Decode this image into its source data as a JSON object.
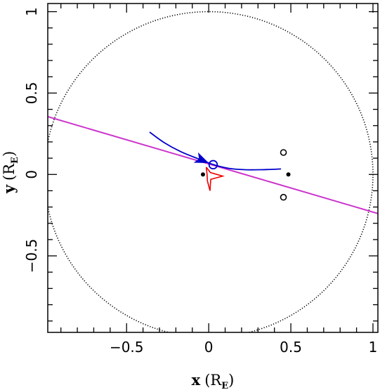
{
  "chart_data": {
    "type": "scatter",
    "title": "",
    "xlabel": "x",
    "xlabel_unit": "R",
    "xlabel_unit_sub": "E",
    "ylabel": "y",
    "ylabel_unit": "R",
    "ylabel_unit_sub": "E",
    "xlim": [
      -0.98,
      1.03
    ],
    "ylim": [
      -0.97,
      1.05
    ],
    "x_ticks": [
      {
        "value": -0.5,
        "label": "−0.5"
      },
      {
        "value": 0,
        "label": "0"
      },
      {
        "value": 0.5,
        "label": "0.5"
      },
      {
        "value": 1,
        "label": "1"
      }
    ],
    "y_ticks": [
      {
        "value": -0.5,
        "label": "−0.5"
      },
      {
        "value": 0,
        "label": "0"
      },
      {
        "value": 0.5,
        "label": "0.5"
      },
      {
        "value": 1,
        "label": "1"
      }
    ],
    "grid": false,
    "colors": {
      "einstein_ring": "#000000",
      "lens_axis": "#cc33cc",
      "source_trajectory": "#0000cc",
      "caustic": "#ee0000",
      "markers": "#000000"
    },
    "einstein_ring": {
      "cx": 0,
      "cy": 0,
      "r": 1
    },
    "lens_axis_line": [
      {
        "x": -0.98,
        "y": 0.355
      },
      {
        "x": 1.03,
        "y": -0.24
      }
    ],
    "source_trajectory": [
      {
        "x": -0.36,
        "y": 0.26
      },
      {
        "x": -0.27,
        "y": 0.195
      },
      {
        "x": -0.17,
        "y": 0.14
      },
      {
        "x": -0.06,
        "y": 0.095
      },
      {
        "x": 0.03,
        "y": 0.06
      },
      {
        "x": 0.12,
        "y": 0.038
      },
      {
        "x": 0.22,
        "y": 0.029
      },
      {
        "x": 0.32,
        "y": 0.029
      },
      {
        "x": 0.44,
        "y": 0.034
      }
    ],
    "trajectory_arrow": {
      "x": 0.0,
      "y": 0.07,
      "direction_deg": -23
    },
    "source_disk": {
      "x": 0.027,
      "y": 0.06,
      "r": 0.025
    },
    "lens_positions": [
      {
        "x": -0.035,
        "y": 0.0
      },
      {
        "x": 0.485,
        "y": 0.0
      }
    ],
    "image_positions": [
      {
        "x": 0.455,
        "y": 0.135
      },
      {
        "x": 0.455,
        "y": -0.14
      }
    ],
    "caustic": [
      {
        "x": -0.015,
        "y": 0.045
      },
      {
        "x": 0.01,
        "y": 0.012
      },
      {
        "x": 0.085,
        "y": -0.01
      },
      {
        "x": 0.012,
        "y": -0.03
      },
      {
        "x": 0.008,
        "y": -0.1
      },
      {
        "x": -0.008,
        "y": -0.04
      },
      {
        "x": -0.01,
        "y": 0.0
      },
      {
        "x": -0.015,
        "y": 0.045
      }
    ]
  }
}
